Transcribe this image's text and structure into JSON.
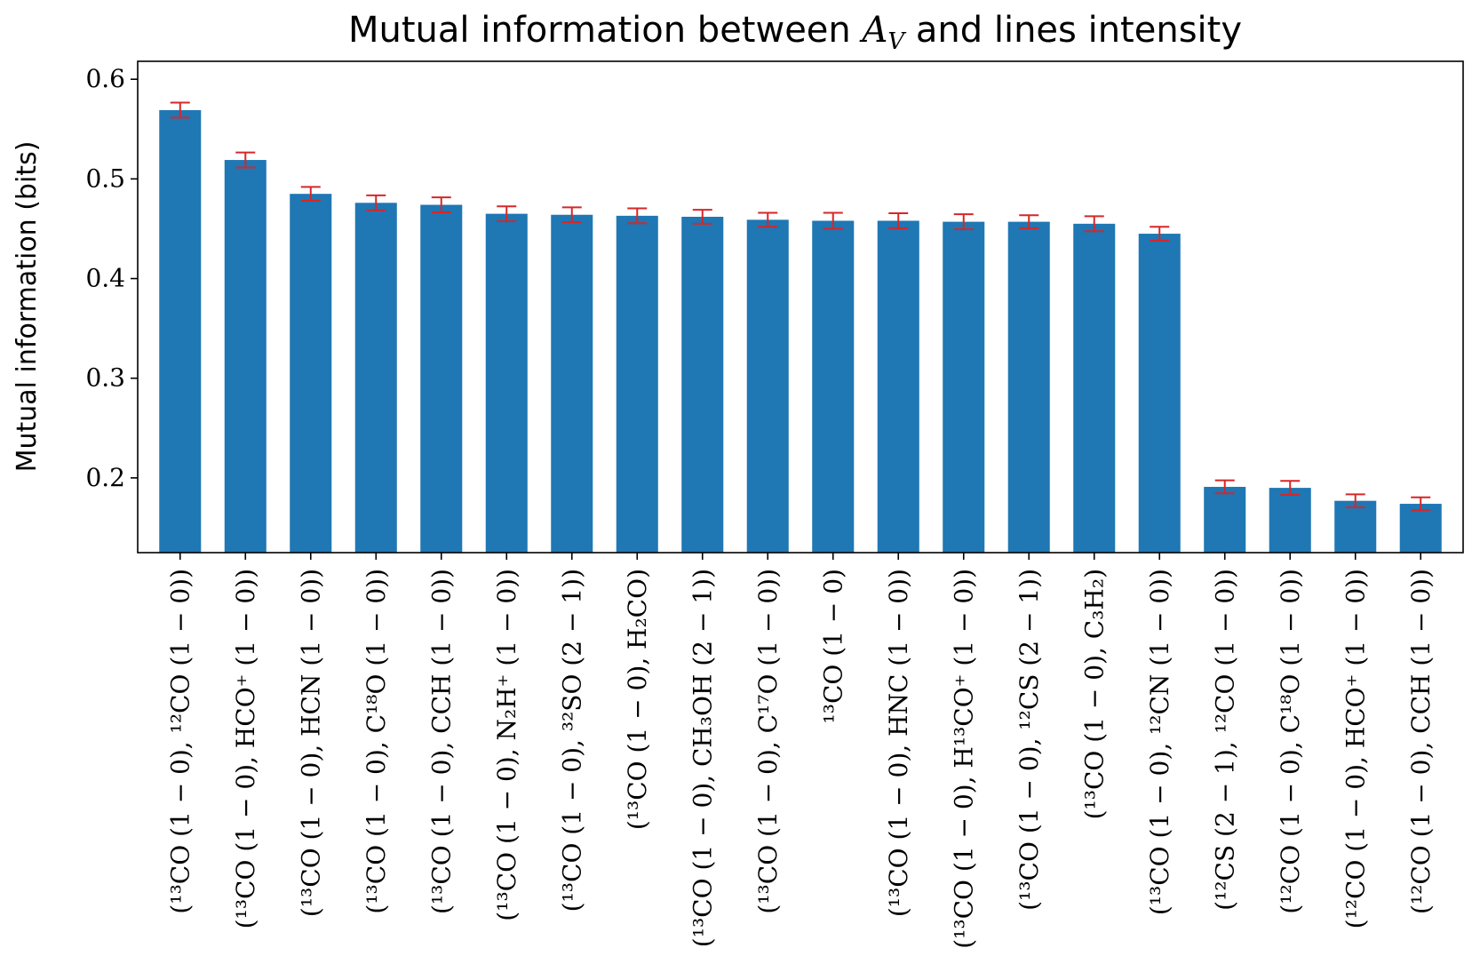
{
  "chart_data": {
    "type": "bar",
    "title": "Mutual information between A_V and lines intensity",
    "title_parts": {
      "before": "Mutual information between ",
      "math": "A",
      "math_sub": "V",
      "after": " and lines intensity"
    },
    "xlabel": "",
    "ylabel": "Mutual information (bits)",
    "ylim": [
      0.125,
      0.618
    ],
    "yticks": [
      0.2,
      0.3,
      0.4,
      0.5,
      0.6
    ],
    "ytick_labels": [
      "0.2",
      "0.3",
      "0.4",
      "0.5",
      "0.6"
    ],
    "grid": false,
    "legend": "none",
    "categories": [
      "(¹³CO (1 − 0), ¹²CO (1 − 0))",
      "(¹³CO (1 − 0), HCO⁺ (1 − 0))",
      "(¹³CO (1 − 0), HCN (1 − 0))",
      "(¹³CO (1 − 0), C¹⁸O (1 − 0))",
      "(¹³CO (1 − 0), CCH (1 − 0))",
      "(¹³CO (1 − 0), N₂H⁺ (1 − 0))",
      "(¹³CO (1 − 0), ³²SO (2 − 1))",
      "(¹³CO (1 − 0), H₂CO)",
      "(¹³CO (1 − 0), CH₃OH (2 − 1))",
      "(¹³CO (1 − 0), C¹⁷O (1 − 0))",
      "¹³CO (1 − 0)",
      "(¹³CO (1 − 0), HNC (1 − 0))",
      "(¹³CO (1 − 0), H¹³CO⁺ (1 − 0))",
      "(¹³CO (1 − 0), ¹²CS (2 − 1))",
      "(¹³CO (1 − 0), C₃H₂)",
      "(¹³CO (1 − 0), ¹²CN (1 − 0))",
      "(¹²CS (2 − 1), ¹²CO (1 − 0))",
      "(¹²CO (1 − 0), C¹⁸O (1 − 0))",
      "(¹²CO (1 − 0), HCO⁺ (1 − 0))",
      "(¹²CO (1 − 0), CCH (1 − 0))"
    ],
    "values": [
      0.569,
      0.519,
      0.485,
      0.476,
      0.474,
      0.465,
      0.464,
      0.463,
      0.462,
      0.459,
      0.458,
      0.458,
      0.457,
      0.457,
      0.455,
      0.445,
      0.191,
      0.19,
      0.177,
      0.174
    ],
    "errors": [
      0.0075,
      0.0075,
      0.007,
      0.0075,
      0.0075,
      0.0075,
      0.0075,
      0.0075,
      0.007,
      0.007,
      0.008,
      0.0075,
      0.0075,
      0.0065,
      0.0075,
      0.007,
      0.0065,
      0.007,
      0.0065,
      0.0065
    ],
    "colors": {
      "bar": "#1f77b4",
      "error": "#d62728",
      "axis": "#000000"
    }
  }
}
